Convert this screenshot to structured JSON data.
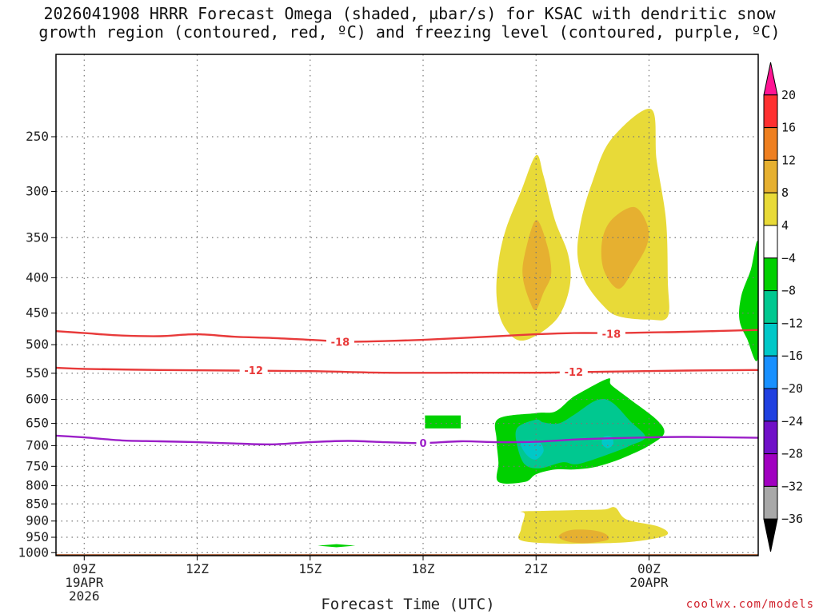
{
  "chart_data": {
    "type": "contour-time-height",
    "title_lines": [
      "2026041908 HRRR Forecast Omega (shaded, µbar/s) for KSAC with dendritic snow",
      "growth region (contoured, red, ºC) and freezing level (contoured, purple, ºC)"
    ],
    "xlabel": "Forecast Time (UTC)",
    "x_ticks": [
      {
        "label": "09Z",
        "sub": [
          "19APR",
          "2026"
        ],
        "t": 0
      },
      {
        "label": "12Z",
        "sub": [],
        "t": 3
      },
      {
        "label": "15Z",
        "sub": [],
        "t": 6
      },
      {
        "label": "18Z",
        "sub": [],
        "t": 9
      },
      {
        "label": "21Z",
        "sub": [],
        "t": 12
      },
      {
        "label": "00Z",
        "sub": [
          "20APR"
        ],
        "t": 15
      }
    ],
    "xlim": [
      -0.75,
      17.9
    ],
    "ylabel": "",
    "y_ticks": [
      250,
      300,
      350,
      400,
      450,
      500,
      550,
      600,
      650,
      700,
      750,
      800,
      850,
      900,
      950,
      1000
    ],
    "ylim": [
      1010,
      190
    ],
    "y_scale": "log-pressure",
    "grid": true,
    "colorbar": {
      "labels": [
        "20",
        "16",
        "12",
        "8",
        "4",
        "−4",
        "−8",
        "−12",
        "−16",
        "−20",
        "−24",
        "−28",
        "−32",
        "−36"
      ],
      "bands": [
        "#ff1493",
        "#ff3030",
        "#ee7f20",
        "#e6b030",
        "#e8da38",
        "#ffffff",
        "#00d000",
        "#00c890",
        "#00c8c8",
        "#1890ff",
        "#2040e0",
        "#7010c8",
        "#a000c0",
        "#a8a8a8",
        "#000000"
      ]
    },
    "contours": [
      {
        "label": "-18",
        "color": "#e83a3a",
        "label_at": [
          [
            6.8,
            495
          ],
          [
            14.0,
            482
          ]
        ],
        "points": [
          [
            -0.75,
            478
          ],
          [
            0,
            481
          ],
          [
            1,
            485
          ],
          [
            2,
            486
          ],
          [
            3,
            483
          ],
          [
            4,
            487
          ],
          [
            5,
            489
          ],
          [
            6,
            492
          ],
          [
            7,
            495
          ],
          [
            8,
            494
          ],
          [
            9,
            492
          ],
          [
            10,
            489
          ],
          [
            11,
            486
          ],
          [
            12,
            483
          ],
          [
            13,
            481
          ],
          [
            14,
            481
          ],
          [
            15,
            480
          ],
          [
            16,
            479
          ],
          [
            17.9,
            476
          ]
        ]
      },
      {
        "label": "-12",
        "color": "#e83a3a",
        "label_at": [
          [
            4.5,
            544
          ],
          [
            13.0,
            547
          ]
        ],
        "points": [
          [
            -0.75,
            540
          ],
          [
            0,
            542
          ],
          [
            2,
            544
          ],
          [
            4,
            545
          ],
          [
            6,
            546
          ],
          [
            8,
            549
          ],
          [
            10,
            549
          ],
          [
            12,
            549
          ],
          [
            13,
            548
          ],
          [
            14,
            547
          ],
          [
            16,
            545
          ],
          [
            17.9,
            544
          ]
        ]
      },
      {
        "label": "0",
        "color": "#9b1fc8",
        "label_at": [
          [
            9.0,
            694
          ]
        ],
        "points": [
          [
            -0.75,
            677
          ],
          [
            0,
            681
          ],
          [
            1,
            688
          ],
          [
            2,
            690
          ],
          [
            3,
            692
          ],
          [
            4,
            695
          ],
          [
            5,
            697
          ],
          [
            6,
            692
          ],
          [
            7,
            689
          ],
          [
            8,
            692
          ],
          [
            9,
            694
          ],
          [
            10,
            690
          ],
          [
            11,
            692
          ],
          [
            12,
            691
          ],
          [
            13,
            686
          ],
          [
            14,
            683
          ],
          [
            15,
            681
          ],
          [
            16,
            680
          ],
          [
            17.9,
            682
          ]
        ]
      }
    ],
    "omega_regions": [
      {
        "color": "#e8da38",
        "points": [
          [
            12.0,
            266
          ],
          [
            11.6,
            300
          ],
          [
            11.2,
            340
          ],
          [
            11.0,
            380
          ],
          [
            10.95,
            425
          ],
          [
            11.1,
            465
          ],
          [
            11.5,
            492
          ],
          [
            12.0,
            485
          ],
          [
            12.6,
            455
          ],
          [
            12.9,
            410
          ],
          [
            12.85,
            370
          ],
          [
            12.5,
            330
          ],
          [
            12.2,
            285
          ]
        ]
      },
      {
        "color": "#e6b030",
        "points": [
          [
            12.0,
            330
          ],
          [
            11.7,
            370
          ],
          [
            11.65,
            400
          ],
          [
            11.85,
            435
          ],
          [
            12.0,
            445
          ],
          [
            12.2,
            420
          ],
          [
            12.4,
            395
          ],
          [
            12.3,
            360
          ]
        ]
      },
      {
        "color": "#e8da38",
        "points": [
          [
            15.05,
            228
          ],
          [
            14.0,
            252
          ],
          [
            13.5,
            290
          ],
          [
            13.2,
            330
          ],
          [
            13.1,
            370
          ],
          [
            13.3,
            405
          ],
          [
            13.8,
            440
          ],
          [
            14.2,
            455
          ],
          [
            15.0,
            460
          ],
          [
            15.5,
            455
          ],
          [
            15.5,
            405
          ],
          [
            15.45,
            330
          ],
          [
            15.2,
            270
          ]
        ]
      },
      {
        "color": "#e6b030",
        "points": [
          [
            14.6,
            316
          ],
          [
            14.0,
            330
          ],
          [
            13.75,
            355
          ],
          [
            13.8,
            390
          ],
          [
            14.2,
            415
          ],
          [
            14.6,
            388
          ],
          [
            14.95,
            358
          ],
          [
            14.95,
            335
          ]
        ]
      },
      {
        "color": "#00d000",
        "points": [
          [
            12.0,
            628
          ],
          [
            11.0,
            640
          ],
          [
            10.95,
            685
          ],
          [
            11.0,
            740
          ],
          [
            11.0,
            790
          ],
          [
            11.7,
            790
          ],
          [
            12.0,
            770
          ],
          [
            12.5,
            758
          ],
          [
            13.0,
            758
          ],
          [
            13.5,
            753
          ],
          [
            14.0,
            740
          ],
          [
            14.5,
            722
          ],
          [
            15.0,
            700
          ],
          [
            15.4,
            672
          ],
          [
            15.2,
            642
          ],
          [
            14.5,
            600
          ],
          [
            14.0,
            572
          ],
          [
            13.9,
            560
          ],
          [
            13.1,
            590
          ],
          [
            12.9,
            600
          ],
          [
            12.5,
            625
          ]
        ]
      },
      {
        "color": "#00c890",
        "points": [
          [
            11.5,
            660
          ],
          [
            11.5,
            700
          ],
          [
            11.7,
            745
          ],
          [
            12.1,
            755
          ],
          [
            12.7,
            740
          ],
          [
            13.0,
            745
          ],
          [
            13.3,
            740
          ],
          [
            14.0,
            718
          ],
          [
            14.5,
            700
          ],
          [
            14.9,
            680
          ],
          [
            14.5,
            645
          ],
          [
            14.0,
            605
          ],
          [
            13.6,
            602
          ],
          [
            13.0,
            632
          ],
          [
            12.6,
            650
          ],
          [
            12.2,
            648
          ],
          [
            12.0,
            642
          ]
        ]
      },
      {
        "color": "#00c8c8",
        "points": [
          [
            11.6,
            692
          ],
          [
            11.75,
            722
          ],
          [
            12.0,
            733
          ],
          [
            12.2,
            712
          ],
          [
            12.05,
            690
          ]
        ]
      },
      {
        "color": "#00c8c8",
        "points": [
          [
            13.8,
            680
          ],
          [
            13.75,
            695
          ],
          [
            13.9,
            706
          ],
          [
            14.05,
            696
          ],
          [
            14.0,
            680
          ]
        ]
      },
      {
        "color": "#00d000",
        "points": [
          [
            9.05,
            633
          ],
          [
            10.0,
            633
          ],
          [
            10.0,
            661
          ],
          [
            9.05,
            661
          ]
        ]
      },
      {
        "color": "#e8da38",
        "points": [
          [
            11.6,
            872
          ],
          [
            11.7,
            880
          ],
          [
            11.6,
            925
          ],
          [
            11.6,
            960
          ],
          [
            12.5,
            970
          ],
          [
            13.5,
            970
          ],
          [
            14.5,
            965
          ],
          [
            15.3,
            950
          ],
          [
            15.5,
            935
          ],
          [
            15.2,
            915
          ],
          [
            14.4,
            895
          ],
          [
            14.1,
            860
          ],
          [
            13.8,
            866
          ],
          [
            13.0,
            868
          ],
          [
            12.2,
            870
          ]
        ]
      },
      {
        "color": "#e6b030",
        "points": [
          [
            12.9,
            928
          ],
          [
            12.6,
            948
          ],
          [
            12.9,
            965
          ],
          [
            13.4,
            968
          ],
          [
            13.9,
            958
          ],
          [
            13.85,
            940
          ],
          [
            13.5,
            928
          ]
        ]
      },
      {
        "color": "#00d000",
        "points": [
          [
            6.2,
            977
          ],
          [
            6.7,
            972
          ],
          [
            7.2,
            977
          ],
          [
            6.7,
            982
          ]
        ]
      },
      {
        "color": "#00d000",
        "points": [
          [
            17.9,
            358
          ],
          [
            17.7,
            390
          ],
          [
            17.45,
            425
          ],
          [
            17.4,
            460
          ],
          [
            17.6,
            490
          ],
          [
            17.9,
            520
          ]
        ]
      }
    ],
    "terrain_color": "#a85a30",
    "terrain_top_hpa": 1005
  },
  "credit": "coolwx.com/models"
}
